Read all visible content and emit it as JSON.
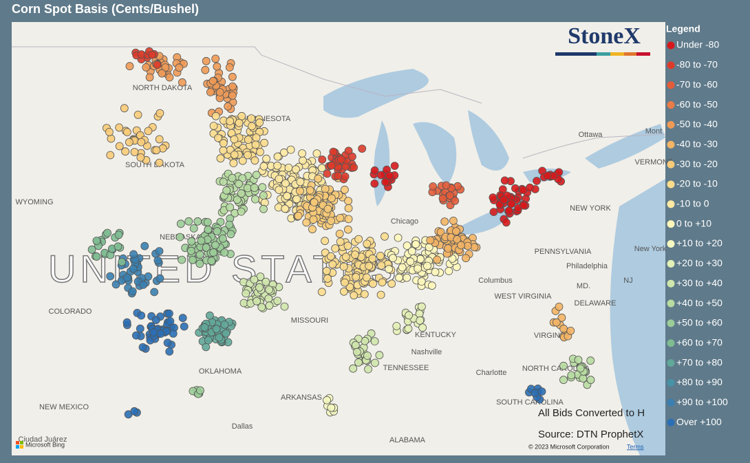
{
  "header": {
    "title": "Corn Spot Basis (Cents/Bushel)"
  },
  "logo": "StoneX",
  "legend": {
    "title": "Legend",
    "items": [
      {
        "label": "Under -80",
        "color": "#d7191c"
      },
      {
        "label": "-80 to -70",
        "color": "#dc3b2a"
      },
      {
        "label": "-70 to -60",
        "color": "#e25c3a"
      },
      {
        "label": "-60 to -50",
        "color": "#e87b48"
      },
      {
        "label": "-50 to -40",
        "color": "#ee9a56"
      },
      {
        "label": "-40 to -30",
        "color": "#f3b465"
      },
      {
        "label": "-30 to -20",
        "color": "#f8cb78"
      },
      {
        "label": "-20 to -10",
        "color": "#fbdc8c"
      },
      {
        "label": "-10 to 0",
        "color": "#fde9a3"
      },
      {
        "label": "0 to +10",
        "color": "#fef7bb"
      },
      {
        "label": "+10 to +20",
        "color": "#f5f8c0"
      },
      {
        "label": "+20 to +30",
        "color": "#e3f0b7"
      },
      {
        "label": "+30 to +40",
        "color": "#cfe6ac"
      },
      {
        "label": "+40 to +50",
        "color": "#b7dba1"
      },
      {
        "label": "+50 to +60",
        "color": "#9ccd98"
      },
      {
        "label": "+60 to +70",
        "color": "#7fbc92"
      },
      {
        "label": "+70 to +80",
        "color": "#62a89a"
      },
      {
        "label": "+80 to +90",
        "color": "#4792a6"
      },
      {
        "label": "+90 to +100",
        "color": "#3a7fb0"
      },
      {
        "label": "Over +100",
        "color": "#2b6fb5"
      }
    ]
  },
  "map": {
    "country_label": "UNITED STATES",
    "labels": [
      "NORTH DAKOTA",
      "MINNESOTA",
      "SOUTH DAKOTA",
      "WYOMING",
      "NEBRASKA",
      "COLORADO",
      "MISSOURI",
      "KENTUCKY",
      "TENNESSEE",
      "OKLAHOMA",
      "ARKANSAS",
      "NEW MEXICO",
      "Dallas",
      "ALABAMA",
      "Nashville",
      "Charlotte",
      "NORTH CAROLINA",
      "SOUTH CAROLINA",
      "VIRGINIA",
      "WEST VIRGINIA",
      "Columbus",
      "PENNSYLVANIA",
      "Philadelphia",
      "NEW YORK",
      "New York",
      "Ottawa",
      "Mont",
      "VERMONT",
      "MD.",
      "DELAWARE",
      "NJ",
      "Chicago",
      "Ciudad Juárez"
    ],
    "notes": [
      "All Bids Converted to H",
      "Source: DTN ProphetX"
    ],
    "attribution": "© 2023 Microsoft Corporation",
    "terms": "Terms",
    "provider": "Microsoft Bing"
  }
}
